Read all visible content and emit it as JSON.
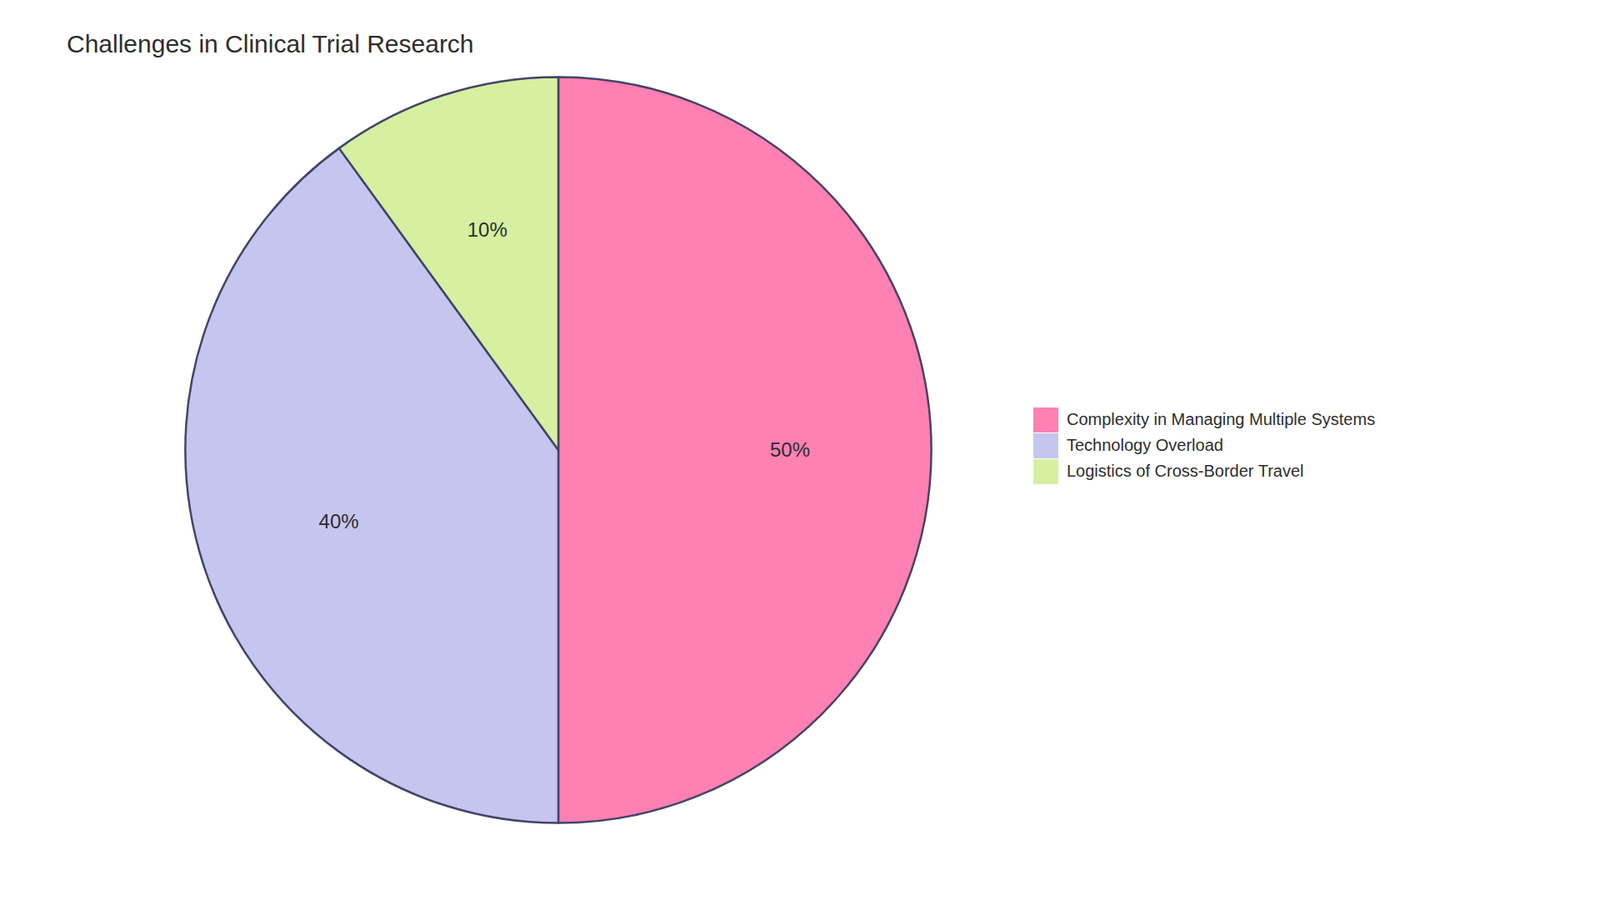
{
  "chart_data": {
    "type": "pie",
    "title": "Challenges in Clinical Trial Research",
    "categories": [
      "Complexity in Managing Multiple Systems",
      "Technology Overload",
      "Logistics of Cross-Border Travel"
    ],
    "values": [
      50,
      40,
      10
    ],
    "value_labels": [
      "50%",
      "40%",
      "10%"
    ],
    "colors": [
      "#ff80b3",
      "#c5c5f0",
      "#d4f0a0"
    ],
    "data_labels": true,
    "legend": "right"
  }
}
